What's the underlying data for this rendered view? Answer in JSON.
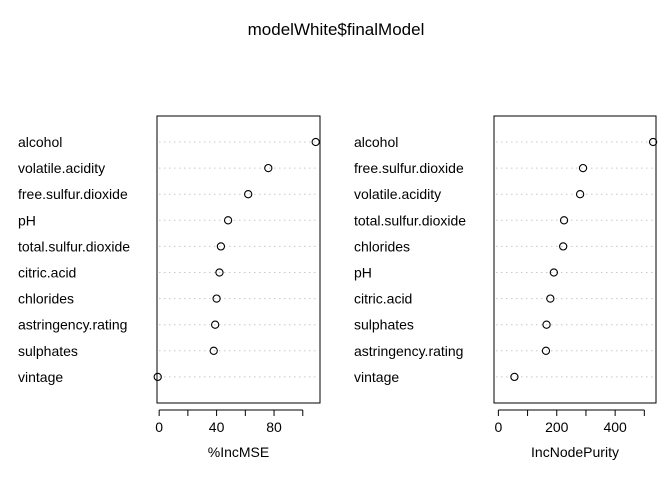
{
  "title": "modelWhite$finalModel",
  "chart_data": [
    {
      "type": "dotchart",
      "xlabel": "%IncMSE",
      "xlim": [
        -1.5,
        112
      ],
      "ticks": [
        0,
        20,
        40,
        60,
        80,
        100
      ],
      "tick_labels": [
        "0",
        "",
        "40",
        "",
        "80",
        ""
      ],
      "categories": [
        "alcohol",
        "volatile.acidity",
        "free.sulfur.dioxide",
        "pH",
        "total.sulfur.dioxide",
        "citric.acid",
        "chlorides",
        "astringency.rating",
        "sulphates",
        "vintage"
      ],
      "values": [
        109,
        76,
        62,
        48,
        43,
        42,
        40,
        39,
        38,
        -1
      ]
    },
    {
      "type": "dotchart",
      "xlabel": "IncNodePurity",
      "xlim": [
        -15,
        540
      ],
      "ticks": [
        0,
        100,
        200,
        300,
        400,
        500
      ],
      "tick_labels": [
        "0",
        "",
        "200",
        "",
        "400",
        ""
      ],
      "categories": [
        "alcohol",
        "free.sulfur.dioxide",
        "volatile.acidity",
        "total.sulfur.dioxide",
        "chlorides",
        "pH",
        "citric.acid",
        "sulphates",
        "astringency.rating",
        "vintage"
      ],
      "values": [
        530,
        290,
        280,
        225,
        222,
        190,
        178,
        165,
        163,
        55
      ]
    }
  ]
}
